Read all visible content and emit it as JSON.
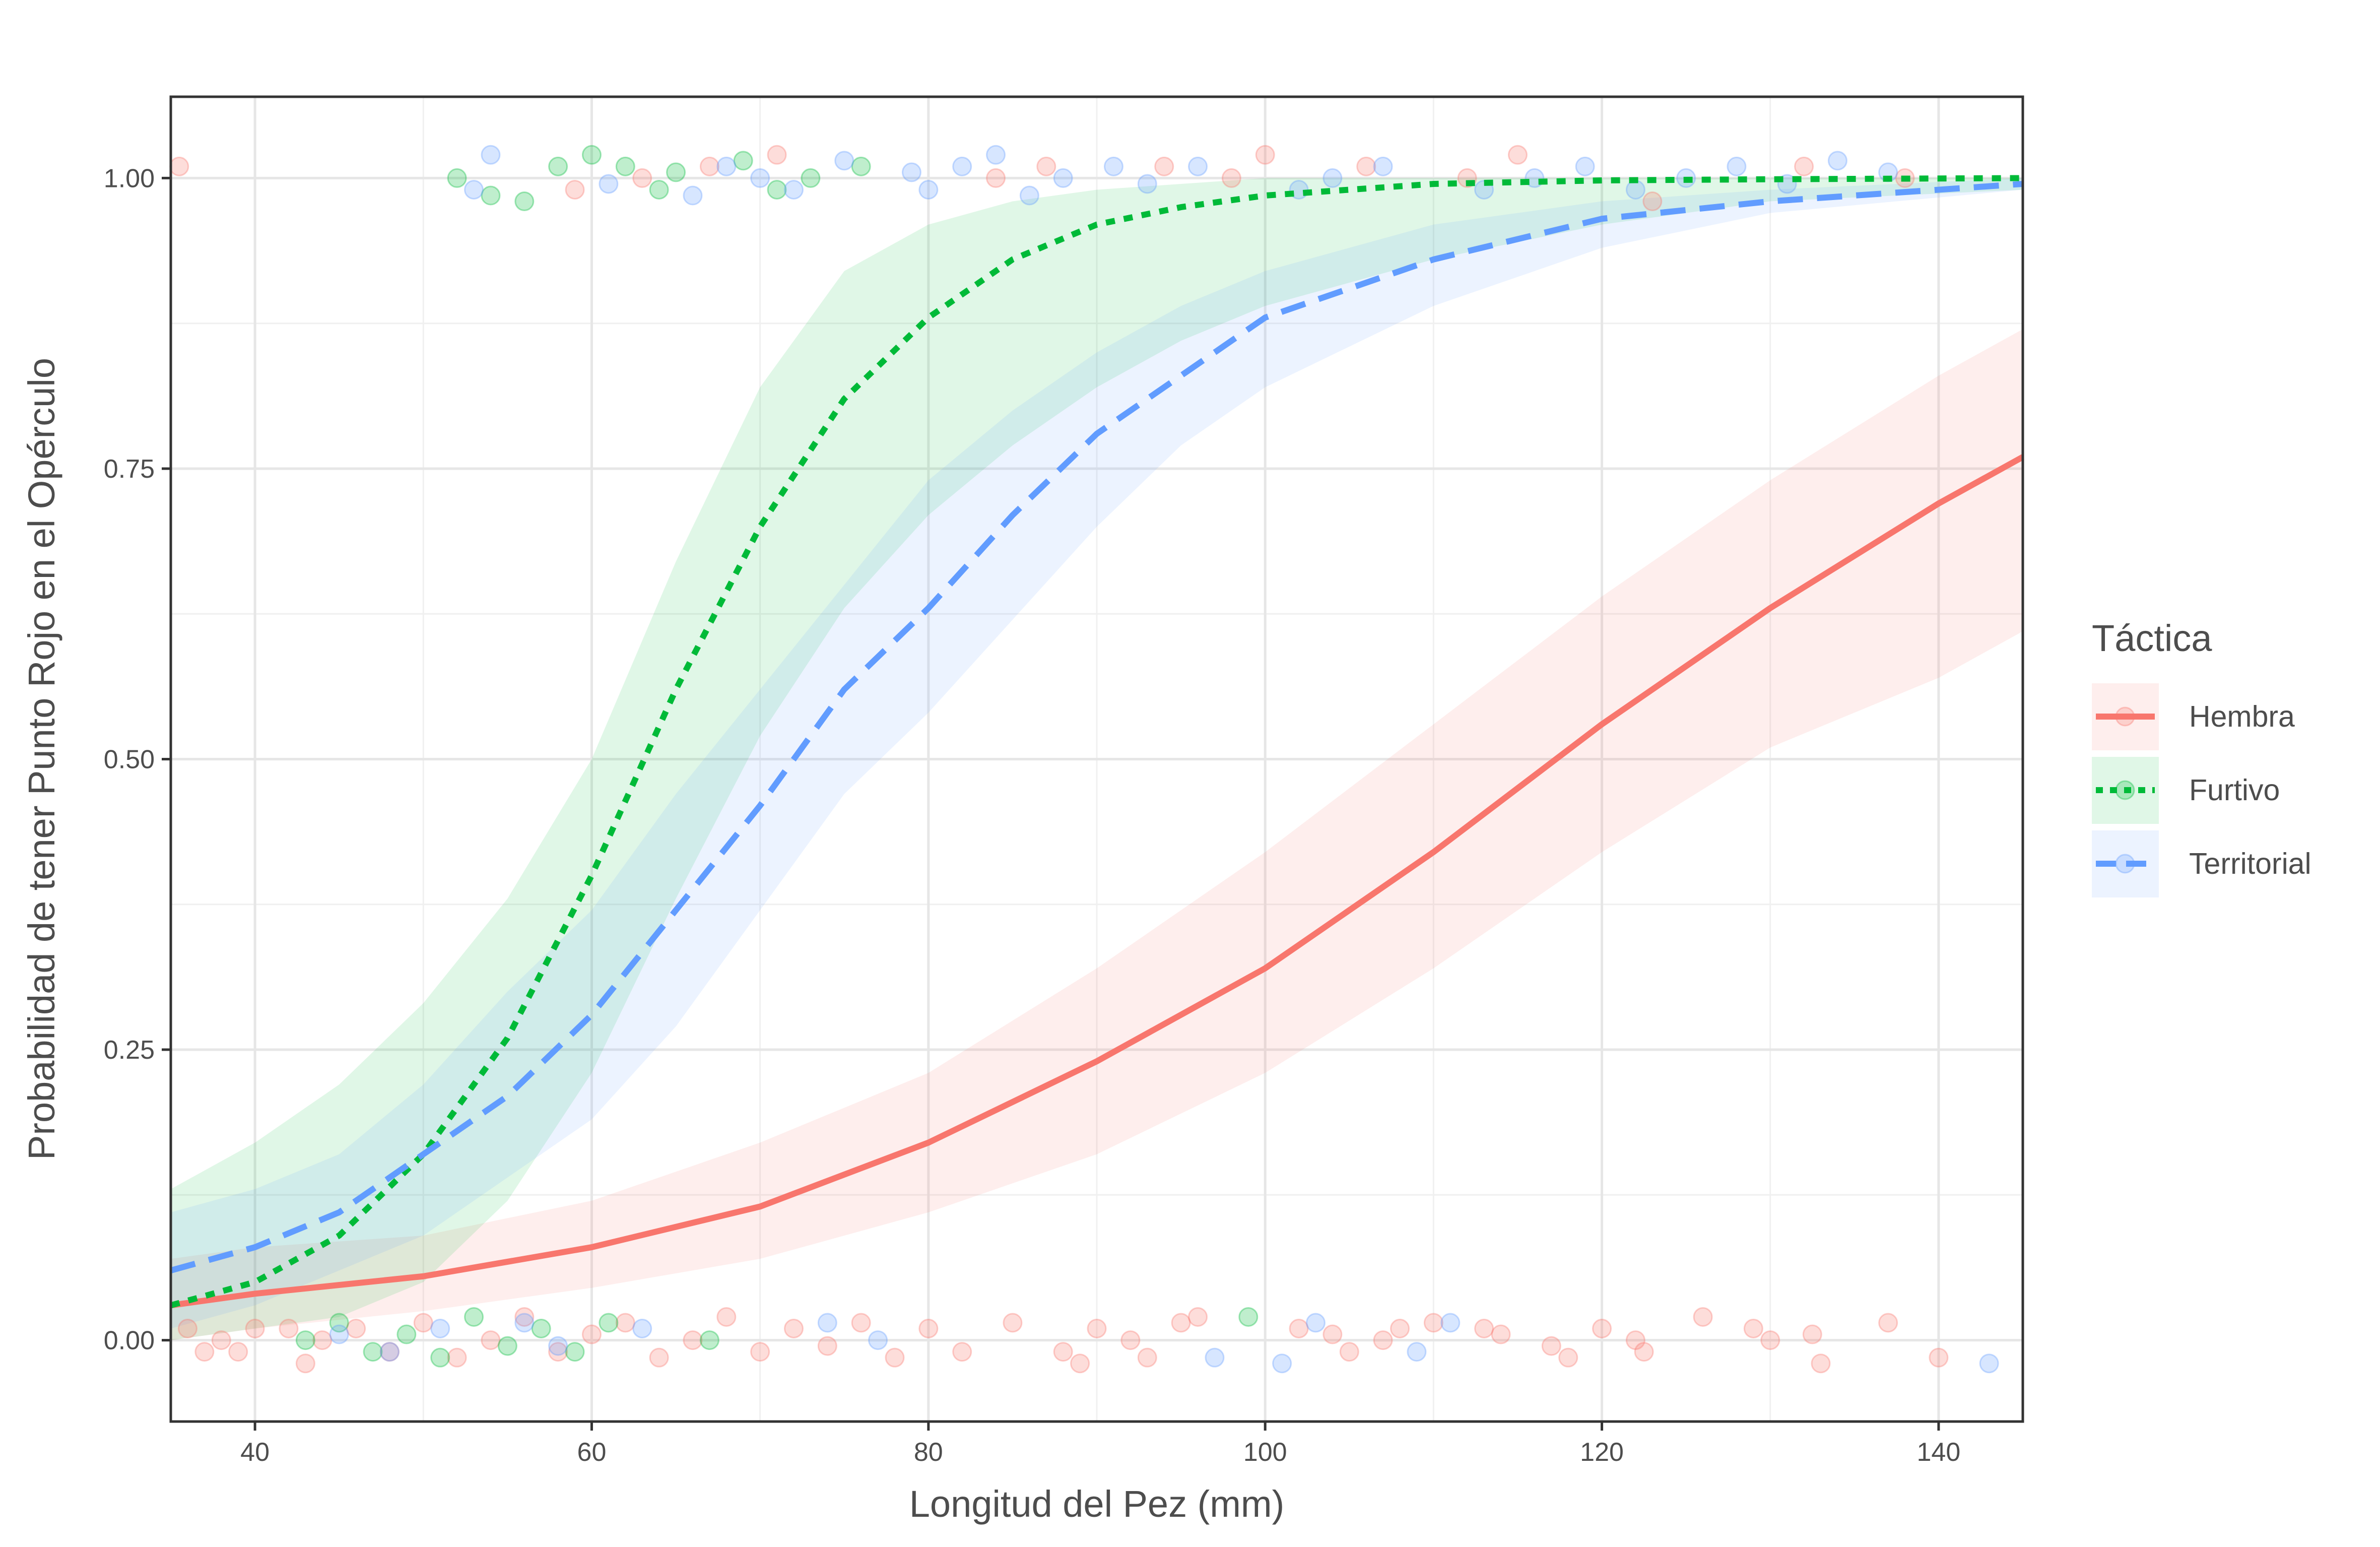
{
  "chart_data": {
    "type": "line",
    "title": "",
    "xlabel": "Longitud del Pez (mm)",
    "ylabel": "Probabilidad de tener Punto Rojo en el Opérculo",
    "xlim": [
      35,
      145
    ],
    "ylim": [
      -0.07,
      1.07
    ],
    "x_ticks": [
      40,
      60,
      80,
      100,
      120,
      140
    ],
    "x_tick_labels": [
      "40",
      "60",
      "80",
      "100",
      "120",
      "140"
    ],
    "y_ticks": [
      0,
      0.25,
      0.5,
      0.75,
      1
    ],
    "y_tick_labels": [
      "0.00",
      "0.25",
      "0.50",
      "0.75",
      "1.00"
    ],
    "grid": true,
    "legend": {
      "title": "Táctica",
      "position": "right"
    },
    "series": [
      {
        "name": "Hembra",
        "color": "#F8766D",
        "dash": "solid",
        "x": [
          35,
          40,
          50,
          60,
          70,
          80,
          90,
          100,
          110,
          120,
          130,
          140,
          145
        ],
        "fit": [
          0.03,
          0.04,
          0.055,
          0.08,
          0.115,
          0.17,
          0.24,
          0.32,
          0.42,
          0.53,
          0.63,
          0.72,
          0.76
        ],
        "lower": [
          0.0,
          0.01,
          0.025,
          0.045,
          0.07,
          0.11,
          0.16,
          0.23,
          0.32,
          0.42,
          0.51,
          0.57,
          0.61
        ],
        "upper": [
          0.07,
          0.08,
          0.09,
          0.12,
          0.17,
          0.23,
          0.32,
          0.42,
          0.53,
          0.64,
          0.74,
          0.83,
          0.87
        ]
      },
      {
        "name": "Furtivo",
        "color": "#00BA38",
        "dash": "dotted",
        "x": [
          35,
          40,
          45,
          50,
          55,
          60,
          65,
          70,
          75,
          80,
          85,
          90,
          95,
          100,
          110,
          120,
          130,
          145
        ],
        "fit": [
          0.03,
          0.05,
          0.09,
          0.16,
          0.26,
          0.4,
          0.56,
          0.7,
          0.81,
          0.88,
          0.93,
          0.96,
          0.975,
          0.985,
          0.995,
          0.998,
          0.999,
          1.0
        ],
        "lower": [
          0.0,
          0.01,
          0.02,
          0.05,
          0.12,
          0.23,
          0.38,
          0.52,
          0.63,
          0.71,
          0.77,
          0.82,
          0.86,
          0.89,
          0.93,
          0.96,
          0.98,
          0.99
        ],
        "upper": [
          0.13,
          0.17,
          0.22,
          0.29,
          0.38,
          0.5,
          0.67,
          0.82,
          0.92,
          0.96,
          0.98,
          0.99,
          0.995,
          1.0,
          1.0,
          1.0,
          1.0,
          1.0
        ]
      },
      {
        "name": "Territorial",
        "color": "#619CFF",
        "dash": "dashed",
        "x": [
          35,
          40,
          45,
          50,
          55,
          60,
          65,
          70,
          75,
          80,
          85,
          90,
          95,
          100,
          110,
          120,
          130,
          145
        ],
        "fit": [
          0.06,
          0.08,
          0.11,
          0.16,
          0.21,
          0.28,
          0.37,
          0.46,
          0.56,
          0.63,
          0.71,
          0.78,
          0.83,
          0.88,
          0.93,
          0.965,
          0.98,
          0.995
        ],
        "lower": [
          0.01,
          0.03,
          0.06,
          0.09,
          0.14,
          0.19,
          0.27,
          0.37,
          0.47,
          0.54,
          0.62,
          0.7,
          0.77,
          0.82,
          0.89,
          0.94,
          0.97,
          0.99
        ],
        "upper": [
          0.11,
          0.13,
          0.16,
          0.22,
          0.3,
          0.37,
          0.47,
          0.56,
          0.65,
          0.74,
          0.8,
          0.85,
          0.89,
          0.92,
          0.96,
          0.98,
          0.99,
          1.0
        ]
      }
    ],
    "points": [
      {
        "series": "Hembra",
        "x": 35.5,
        "y": 1.01
      },
      {
        "series": "Hembra",
        "x": 36,
        "y": 0.01
      },
      {
        "series": "Hembra",
        "x": 37,
        "y": -0.01
      },
      {
        "series": "Hembra",
        "x": 38,
        "y": 0.0
      },
      {
        "series": "Hembra",
        "x": 39,
        "y": -0.01
      },
      {
        "series": "Hembra",
        "x": 40,
        "y": 0.01
      },
      {
        "series": "Hembra",
        "x": 42,
        "y": 0.01
      },
      {
        "series": "Hembra",
        "x": 43,
        "y": -0.02
      },
      {
        "series": "Hembra",
        "x": 44,
        "y": 0.0
      },
      {
        "series": "Hembra",
        "x": 46,
        "y": 0.01
      },
      {
        "series": "Hembra",
        "x": 48,
        "y": -0.01
      },
      {
        "series": "Hembra",
        "x": 50,
        "y": 0.015
      },
      {
        "series": "Hembra",
        "x": 52,
        "y": -0.015
      },
      {
        "series": "Hembra",
        "x": 54,
        "y": 0.0
      },
      {
        "series": "Hembra",
        "x": 56,
        "y": 0.02
      },
      {
        "series": "Hembra",
        "x": 58,
        "y": -0.01
      },
      {
        "series": "Hembra",
        "x": 59,
        "y": 0.99
      },
      {
        "series": "Hembra",
        "x": 60,
        "y": 0.005
      },
      {
        "series": "Hembra",
        "x": 62,
        "y": 0.015
      },
      {
        "series": "Hembra",
        "x": 63,
        "y": 1.0
      },
      {
        "series": "Hembra",
        "x": 64,
        "y": -0.015
      },
      {
        "series": "Hembra",
        "x": 66,
        "y": 0.0
      },
      {
        "series": "Hembra",
        "x": 67,
        "y": 1.01
      },
      {
        "series": "Hembra",
        "x": 68,
        "y": 0.02
      },
      {
        "series": "Hembra",
        "x": 70,
        "y": -0.01
      },
      {
        "series": "Hembra",
        "x": 71,
        "y": 1.02
      },
      {
        "series": "Hembra",
        "x": 72,
        "y": 0.01
      },
      {
        "series": "Hembra",
        "x": 74,
        "y": -0.005
      },
      {
        "series": "Hembra",
        "x": 76,
        "y": 0.015
      },
      {
        "series": "Hembra",
        "x": 78,
        "y": -0.015
      },
      {
        "series": "Hembra",
        "x": 80,
        "y": 0.01
      },
      {
        "series": "Hembra",
        "x": 82,
        "y": -0.01
      },
      {
        "series": "Hembra",
        "x": 84,
        "y": 1.0
      },
      {
        "series": "Hembra",
        "x": 85,
        "y": 0.015
      },
      {
        "series": "Hembra",
        "x": 87,
        "y": 1.01
      },
      {
        "series": "Hembra",
        "x": 88,
        "y": -0.01
      },
      {
        "series": "Hembra",
        "x": 89,
        "y": -0.02
      },
      {
        "series": "Hembra",
        "x": 90,
        "y": 0.01
      },
      {
        "series": "Hembra",
        "x": 92,
        "y": 0.0
      },
      {
        "series": "Hembra",
        "x": 93,
        "y": -0.015
      },
      {
        "series": "Hembra",
        "x": 94,
        "y": 1.01
      },
      {
        "series": "Hembra",
        "x": 95,
        "y": 0.015
      },
      {
        "series": "Hembra",
        "x": 96,
        "y": 0.02
      },
      {
        "series": "Hembra",
        "x": 98,
        "y": 1.0
      },
      {
        "series": "Hembra",
        "x": 100,
        "y": 1.02
      },
      {
        "series": "Hembra",
        "x": 102,
        "y": 0.01
      },
      {
        "series": "Hembra",
        "x": 104,
        "y": 0.005
      },
      {
        "series": "Hembra",
        "x": 105,
        "y": -0.01
      },
      {
        "series": "Hembra",
        "x": 106,
        "y": 1.01
      },
      {
        "series": "Hembra",
        "x": 107,
        "y": 0.0
      },
      {
        "series": "Hembra",
        "x": 108,
        "y": 0.01
      },
      {
        "series": "Hembra",
        "x": 110,
        "y": 0.015
      },
      {
        "series": "Hembra",
        "x": 112,
        "y": 1.0
      },
      {
        "series": "Hembra",
        "x": 113,
        "y": 0.01
      },
      {
        "series": "Hembra",
        "x": 114,
        "y": 0.005
      },
      {
        "series": "Hembra",
        "x": 115,
        "y": 1.02
      },
      {
        "series": "Hembra",
        "x": 117,
        "y": -0.005
      },
      {
        "series": "Hembra",
        "x": 118,
        "y": -0.015
      },
      {
        "series": "Hembra",
        "x": 120,
        "y": 0.01
      },
      {
        "series": "Hembra",
        "x": 122,
        "y": 0.0
      },
      {
        "series": "Hembra",
        "x": 122.5,
        "y": -0.01
      },
      {
        "series": "Hembra",
        "x": 123,
        "y": 0.98
      },
      {
        "series": "Hembra",
        "x": 126,
        "y": 0.02
      },
      {
        "series": "Hembra",
        "x": 129,
        "y": 0.01
      },
      {
        "series": "Hembra",
        "x": 130,
        "y": 0.0
      },
      {
        "series": "Hembra",
        "x": 132,
        "y": 1.01
      },
      {
        "series": "Hembra",
        "x": 132.5,
        "y": 0.005
      },
      {
        "series": "Hembra",
        "x": 133,
        "y": -0.02
      },
      {
        "series": "Hembra",
        "x": 137,
        "y": 0.015
      },
      {
        "series": "Hembra",
        "x": 138,
        "y": 1.0
      },
      {
        "series": "Hembra",
        "x": 140,
        "y": -0.015
      },
      {
        "series": "Furtivo",
        "x": 43,
        "y": 0.0
      },
      {
        "series": "Furtivo",
        "x": 45,
        "y": 0.015
      },
      {
        "series": "Furtivo",
        "x": 47,
        "y": -0.01
      },
      {
        "series": "Furtivo",
        "x": 49,
        "y": 0.005
      },
      {
        "series": "Furtivo",
        "x": 51,
        "y": -0.015
      },
      {
        "series": "Furtivo",
        "x": 52,
        "y": 1.0
      },
      {
        "series": "Furtivo",
        "x": 53,
        "y": 0.02
      },
      {
        "series": "Furtivo",
        "x": 54,
        "y": 0.985
      },
      {
        "series": "Furtivo",
        "x": 55,
        "y": -0.005
      },
      {
        "series": "Furtivo",
        "x": 56,
        "y": 0.98
      },
      {
        "series": "Furtivo",
        "x": 57,
        "y": 0.01
      },
      {
        "series": "Furtivo",
        "x": 58,
        "y": 1.01
      },
      {
        "series": "Furtivo",
        "x": 59,
        "y": -0.01
      },
      {
        "series": "Furtivo",
        "x": 60,
        "y": 1.02
      },
      {
        "series": "Furtivo",
        "x": 61,
        "y": 0.015
      },
      {
        "series": "Furtivo",
        "x": 62,
        "y": 1.01
      },
      {
        "series": "Furtivo",
        "x": 64,
        "y": 0.99
      },
      {
        "series": "Furtivo",
        "x": 65,
        "y": 1.005
      },
      {
        "series": "Furtivo",
        "x": 67,
        "y": 0.0
      },
      {
        "series": "Furtivo",
        "x": 69,
        "y": 1.015
      },
      {
        "series": "Furtivo",
        "x": 71,
        "y": 0.99
      },
      {
        "series": "Furtivo",
        "x": 73,
        "y": 1.0
      },
      {
        "series": "Furtivo",
        "x": 76,
        "y": 1.01
      },
      {
        "series": "Furtivo",
        "x": 99,
        "y": 0.02
      },
      {
        "series": "Territorial",
        "x": 45,
        "y": 0.005
      },
      {
        "series": "Territorial",
        "x": 48,
        "y": -0.01
      },
      {
        "series": "Territorial",
        "x": 51,
        "y": 0.01
      },
      {
        "series": "Territorial",
        "x": 53,
        "y": 0.99
      },
      {
        "series": "Territorial",
        "x": 54,
        "y": 1.02
      },
      {
        "series": "Territorial",
        "x": 56,
        "y": 0.015
      },
      {
        "series": "Territorial",
        "x": 58,
        "y": -0.005
      },
      {
        "series": "Territorial",
        "x": 61,
        "y": 0.995
      },
      {
        "series": "Territorial",
        "x": 63,
        "y": 0.01
      },
      {
        "series": "Territorial",
        "x": 66,
        "y": 0.985
      },
      {
        "series": "Territorial",
        "x": 68,
        "y": 1.01
      },
      {
        "series": "Territorial",
        "x": 70,
        "y": 1.0
      },
      {
        "series": "Territorial",
        "x": 72,
        "y": 0.99
      },
      {
        "series": "Territorial",
        "x": 74,
        "y": 0.015
      },
      {
        "series": "Territorial",
        "x": 75,
        "y": 1.015
      },
      {
        "series": "Territorial",
        "x": 77,
        "y": 0.0
      },
      {
        "series": "Territorial",
        "x": 79,
        "y": 1.005
      },
      {
        "series": "Territorial",
        "x": 80,
        "y": 0.99
      },
      {
        "series": "Territorial",
        "x": 82,
        "y": 1.01
      },
      {
        "series": "Territorial",
        "x": 84,
        "y": 1.02
      },
      {
        "series": "Territorial",
        "x": 86,
        "y": 0.985
      },
      {
        "series": "Territorial",
        "x": 88,
        "y": 1.0
      },
      {
        "series": "Territorial",
        "x": 91,
        "y": 1.01
      },
      {
        "series": "Territorial",
        "x": 93,
        "y": 0.995
      },
      {
        "series": "Territorial",
        "x": 96,
        "y": 1.01
      },
      {
        "series": "Territorial",
        "x": 97,
        "y": -0.015
      },
      {
        "series": "Territorial",
        "x": 101,
        "y": -0.02
      },
      {
        "series": "Territorial",
        "x": 102,
        "y": 0.99
      },
      {
        "series": "Territorial",
        "x": 103,
        "y": 0.015
      },
      {
        "series": "Territorial",
        "x": 104,
        "y": 1.0
      },
      {
        "series": "Territorial",
        "x": 107,
        "y": 1.01
      },
      {
        "series": "Territorial",
        "x": 109,
        "y": -0.01
      },
      {
        "series": "Territorial",
        "x": 111,
        "y": 0.015
      },
      {
        "series": "Territorial",
        "x": 113,
        "y": 0.99
      },
      {
        "series": "Territorial",
        "x": 116,
        "y": 1.0
      },
      {
        "series": "Territorial",
        "x": 119,
        "y": 1.01
      },
      {
        "series": "Territorial",
        "x": 122,
        "y": 0.99
      },
      {
        "series": "Territorial",
        "x": 125,
        "y": 1.0
      },
      {
        "series": "Territorial",
        "x": 128,
        "y": 1.01
      },
      {
        "series": "Territorial",
        "x": 131,
        "y": 0.995
      },
      {
        "series": "Territorial",
        "x": 134,
        "y": 1.015
      },
      {
        "series": "Territorial",
        "x": 137,
        "y": 1.005
      },
      {
        "series": "Territorial",
        "x": 143,
        "y": -0.02
      }
    ]
  }
}
